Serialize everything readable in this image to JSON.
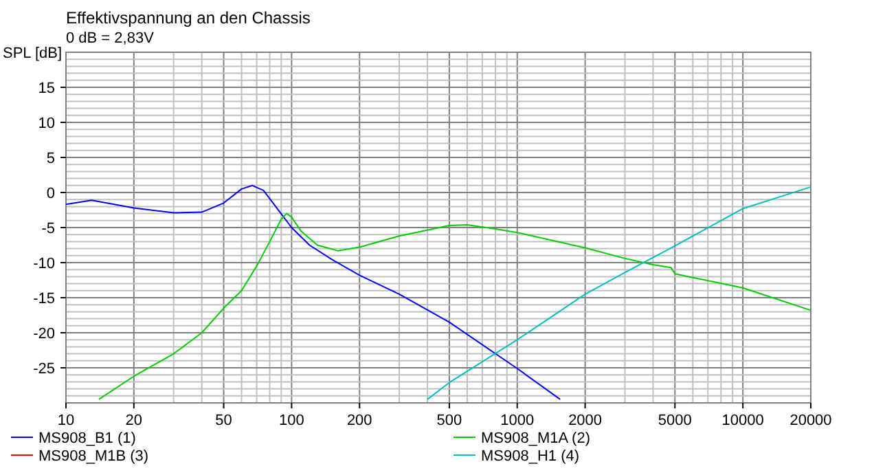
{
  "chart_data": {
    "type": "line",
    "title": "Effektivspannung an den Chassis",
    "subtitle": "0 dB = 2,83V",
    "ylabel": "SPL [dB]",
    "log": "x",
    "grid": true,
    "legend": "bottom",
    "line_style": "solid",
    "marker": "none",
    "xlim": [
      10,
      20000
    ],
    "ylim": [
      -30,
      20
    ],
    "xticks": [
      10,
      20,
      {
        "value": 30,
        "label": null
      },
      {
        "value": 40,
        "label": null
      },
      50,
      {
        "value": 60,
        "label": null
      },
      {
        "value": 70,
        "label": null
      },
      {
        "value": 80,
        "label": null
      },
      {
        "value": 90,
        "label": null
      },
      100,
      200,
      {
        "value": 300,
        "label": null
      },
      {
        "value": 400,
        "label": null
      },
      500,
      {
        "value": 600,
        "label": null
      },
      {
        "value": 700,
        "label": null
      },
      {
        "value": 800,
        "label": null
      },
      {
        "value": 900,
        "label": null
      },
      1000,
      2000,
      {
        "value": 3000,
        "label": null
      },
      {
        "value": 4000,
        "label": null
      },
      5000,
      {
        "value": 6000,
        "label": null
      },
      {
        "value": 7000,
        "label": null
      },
      {
        "value": 8000,
        "label": null
      },
      {
        "value": 9000,
        "label": null
      },
      10000,
      20000
    ],
    "yticks": [
      {
        "value": -29,
        "label": null
      },
      {
        "value": -28,
        "label": null
      },
      {
        "value": -27,
        "label": null
      },
      {
        "value": -26,
        "label": null
      },
      -25,
      {
        "value": -24,
        "label": null
      },
      {
        "value": -23,
        "label": null
      },
      {
        "value": -22,
        "label": null
      },
      {
        "value": -21,
        "label": null
      },
      -20,
      {
        "value": -19,
        "label": null
      },
      {
        "value": -18,
        "label": null
      },
      {
        "value": -17,
        "label": null
      },
      {
        "value": -16,
        "label": null
      },
      -15,
      {
        "value": -14,
        "label": null
      },
      {
        "value": -13,
        "label": null
      },
      {
        "value": -12,
        "label": null
      },
      {
        "value": -11,
        "label": null
      },
      -10,
      {
        "value": -9,
        "label": null
      },
      {
        "value": -8,
        "label": null
      },
      {
        "value": -7,
        "label": null
      },
      {
        "value": -6,
        "label": null
      },
      -5,
      {
        "value": -4,
        "label": null
      },
      {
        "value": -3,
        "label": null
      },
      {
        "value": -2,
        "label": null
      },
      {
        "value": -1,
        "label": null
      },
      0,
      {
        "value": 1,
        "label": null
      },
      {
        "value": 2,
        "label": null
      },
      {
        "value": 3,
        "label": null
      },
      {
        "value": 4,
        "label": null
      },
      5,
      {
        "value": 6,
        "label": null
      },
      {
        "value": 7,
        "label": null
      },
      {
        "value": 8,
        "label": null
      },
      {
        "value": 9,
        "label": null
      },
      10,
      {
        "value": 11,
        "label": null
      },
      {
        "value": 12,
        "label": null
      },
      {
        "value": 13,
        "label": null
      },
      {
        "value": 14,
        "label": null
      },
      15,
      {
        "value": 16,
        "label": null
      },
      {
        "value": 17,
        "label": null
      },
      {
        "value": 18,
        "label": null
      },
      {
        "value": 19,
        "label": null
      }
    ],
    "series": [
      {
        "name": "MS908_B1 (1)",
        "color": "#0000ff",
        "x": [
          10,
          13,
          20,
          30,
          40,
          50,
          60,
          67,
          75,
          85,
          100,
          120,
          150,
          200,
          300,
          500,
          1000,
          1550
        ],
        "values": [
          -1.7,
          -1.1,
          -2.2,
          -2.9,
          -2.8,
          -1.5,
          0.5,
          1.0,
          0.3,
          -2,
          -5,
          -7.5,
          -9.5,
          -11.8,
          -14.5,
          -18.5,
          -25.1,
          -29.5
        ]
      },
      {
        "name": "MS908_M1A (2)",
        "color": "#00cc00",
        "x": [
          14,
          20,
          30,
          40,
          50,
          60,
          70,
          80,
          90,
          95,
          100,
          110,
          130,
          160,
          200,
          300,
          500,
          600,
          800,
          1000,
          2000,
          3000,
          4000,
          4800,
          5000,
          10000,
          20000
        ],
        "values": [
          -29.5,
          -26.2,
          -23,
          -20,
          -16.5,
          -14,
          -10.5,
          -7,
          -3.8,
          -3,
          -3.5,
          -5.5,
          -7.5,
          -8.3,
          -7.8,
          -6.2,
          -4.7,
          -4.6,
          -5.2,
          -5.7,
          -7.9,
          -9.4,
          -10.3,
          -10.7,
          -11.6,
          -13.6,
          -16.8
        ]
      },
      {
        "name": "MS908_M1B (3)",
        "color": "#ff0000"
      },
      {
        "name": "MS908_H1 (4)",
        "color": "#00bfbf",
        "x": [
          400,
          500,
          1000,
          2000,
          3000,
          5000,
          10000,
          20000
        ],
        "values": [
          -29.5,
          -27.1,
          -21,
          -14.5,
          -11.4,
          -7.6,
          -2.3,
          0.8
        ]
      }
    ]
  }
}
